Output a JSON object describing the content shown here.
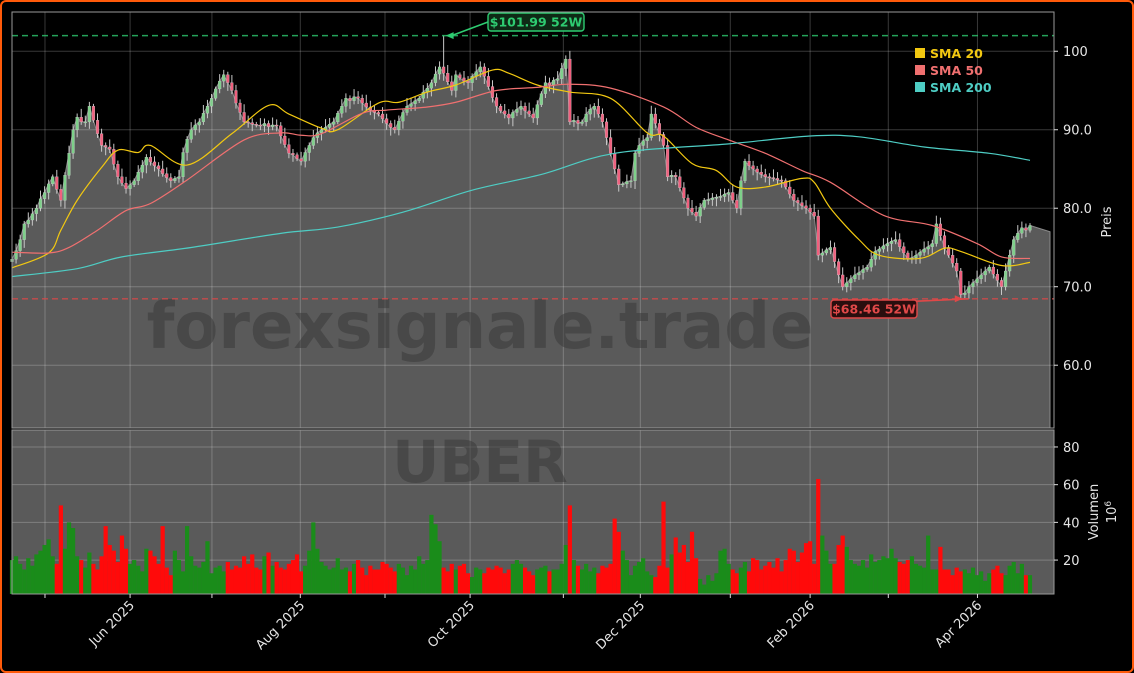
{
  "watermark": "forexsignale.trade",
  "ticker": "UBER",
  "colors": {
    "background": "#000000",
    "frame": "#ff5a0a",
    "area_fill": "#5a5a5a",
    "candle_up": "#7ed08a",
    "candle_down": "#f0607e",
    "volume_up": "#1a8c1a",
    "volume_down": "#ff0a0a",
    "sma20": "#f2c811",
    "sma50": "#f07070",
    "sma200": "#4ecdc4",
    "high_line": "#2ecc71",
    "low_line": "#e04848"
  },
  "chart_data": [
    {
      "type": "candlestick",
      "panel": "price",
      "ylabel": "Preis",
      "ylim": [
        52,
        105
      ],
      "yticks": [
        "60.0",
        "70.0",
        "80.0",
        "90.0",
        "100"
      ],
      "ytick_values": [
        60,
        70,
        80,
        90,
        100
      ],
      "grid": true,
      "x_ticks": [
        {
          "index": 8.1,
          "label": ""
        },
        {
          "index": 29,
          "label": "Jun 2025"
        },
        {
          "index": 49.1,
          "label": ""
        },
        {
          "index": 70.8,
          "label": "Aug 2025"
        },
        {
          "index": 91.6,
          "label": ""
        },
        {
          "index": 112.5,
          "label": "Oct 2025"
        },
        {
          "index": 135.4,
          "label": ""
        },
        {
          "index": 154.3,
          "label": "Dec 2025"
        },
        {
          "index": 176.4,
          "label": ""
        },
        {
          "index": 196,
          "label": "Feb 2026"
        },
        {
          "index": 215.2,
          "label": ""
        },
        {
          "index": 237.1,
          "label": "Apr 2026"
        }
      ],
      "close": [
        73.5,
        74.6,
        76.0,
        78.0,
        78.5,
        79.3,
        80.0,
        81.2,
        82.0,
        83.1,
        84.0,
        82.4,
        81.0,
        84.2,
        87.0,
        90.0,
        91.6,
        91.0,
        91.0,
        93.0,
        91.2,
        89.5,
        88.0,
        87.8,
        87.5,
        85.6,
        84.0,
        83.2,
        82.5,
        83.0,
        83.5,
        84.6,
        85.5,
        86.5,
        85.9,
        85.4,
        85.0,
        84.4,
        83.9,
        83.5,
        83.8,
        84.0,
        87.1,
        88.8,
        90.0,
        90.6,
        91.0,
        92.1,
        93.0,
        94.0,
        95.2,
        96.2,
        97.0,
        96.0,
        95.0,
        93.4,
        92.2,
        91.0,
        90.9,
        90.7,
        90.6,
        90.5,
        90.8,
        90.4,
        90.6,
        90.5,
        89.2,
        88.1,
        87.0,
        86.8,
        86.3,
        86.0,
        87.1,
        88.0,
        89.0,
        89.6,
        90.0,
        90.3,
        90.7,
        91.0,
        92.1,
        93.0,
        94.0,
        93.7,
        94.2,
        94.0,
        93.4,
        92.9,
        92.5,
        92.2,
        92.0,
        91.4,
        90.8,
        90.3,
        90.0,
        91.1,
        92.2,
        93.0,
        93.3,
        93.7,
        94.0,
        94.8,
        95.3,
        96.0,
        97.1,
        98.0,
        97.2,
        96.1,
        95.0,
        97.0,
        96.6,
        96.2,
        96.0,
        96.8,
        97.4,
        98.0,
        96.8,
        95.5,
        94.1,
        93.0,
        92.4,
        92.0,
        91.5,
        92.2,
        92.6,
        93.0,
        92.4,
        92.0,
        91.5,
        93.2,
        94.6,
        96.0,
        95.7,
        96.3,
        96.5,
        97.8,
        99.0,
        91.0,
        91.2,
        90.8,
        91.0,
        92.0,
        92.6,
        93.0,
        92.0,
        91.0,
        89.0,
        87.0,
        85.0,
        83.0,
        83.1,
        83.4,
        83.5,
        87.0,
        88.0,
        88.6,
        89.0,
        92.0,
        90.8,
        89.4,
        88.0,
        84.0,
        84.2,
        84.0,
        82.6,
        81.3,
        80.0,
        79.5,
        79.0,
        80.1,
        81.0,
        81.1,
        81.3,
        81.4,
        81.5,
        81.8,
        82.0,
        81.0,
        80.0,
        83.5,
        86.0,
        85.4,
        85.0,
        84.6,
        84.3,
        84.0,
        83.9,
        83.8,
        83.6,
        83.5,
        82.7,
        81.8,
        81.0,
        80.7,
        80.3,
        80.0,
        79.5,
        79.0,
        74.0,
        74.3,
        74.7,
        75.0,
        73.2,
        71.5,
        70.0,
        70.5,
        71.0,
        71.5,
        71.8,
        72.2,
        72.5,
        73.5,
        74.5,
        74.8,
        75.2,
        75.5,
        75.8,
        76.0,
        75.1,
        74.3,
        73.5,
        73.7,
        74.0,
        74.4,
        74.8,
        75.1,
        75.5,
        78.0,
        76.5,
        75.0,
        74.0,
        73.0,
        72.0,
        69.0,
        69.2,
        70.0,
        70.5,
        71.0,
        71.5,
        72.0,
        72.5,
        71.6,
        70.8,
        70.0,
        72.0,
        74.0,
        76.0,
        76.8,
        77.5,
        77.2,
        77.8
      ],
      "series": [
        {
          "name": "SMA 20",
          "points": [
            [
              0,
              72.4
            ],
            [
              9,
              74.3
            ],
            [
              12,
              77.2
            ],
            [
              16,
              81
            ],
            [
              22,
              85.2
            ],
            [
              26,
              87.4
            ],
            [
              31,
              87.1
            ],
            [
              34,
              88
            ],
            [
              43,
              85.5
            ],
            [
              54,
              89.5
            ],
            [
              63,
              93.1
            ],
            [
              68,
              92
            ],
            [
              76,
              90.2
            ],
            [
              80,
              90
            ],
            [
              90,
              93.4
            ],
            [
              95,
              93.5
            ],
            [
              102,
              94.8
            ],
            [
              109,
              95.7
            ],
            [
              118,
              97.6
            ],
            [
              122,
              97.2
            ],
            [
              129,
              95.7
            ],
            [
              137,
              94.8
            ],
            [
              147,
              94
            ],
            [
              156,
              89.6
            ],
            [
              160,
              89.2
            ],
            [
              167,
              85.7
            ],
            [
              173,
              84.8
            ],
            [
              178,
              82.7
            ],
            [
              185,
              82.7
            ],
            [
              194,
              83.8
            ],
            [
              197,
              83.3
            ],
            [
              201,
              80
            ],
            [
              208,
              76
            ],
            [
              213,
              74
            ],
            [
              223,
              73.6
            ],
            [
              229,
              74.9
            ],
            [
              233,
              74.5
            ],
            [
              243,
              72.7
            ],
            [
              250,
              73.1
            ]
          ]
        },
        {
          "name": "SMA 50",
          "points": [
            [
              0,
              74.4
            ],
            [
              9,
              74.3
            ],
            [
              14,
              75
            ],
            [
              21,
              77.2
            ],
            [
              28,
              79.7
            ],
            [
              34,
              80.6
            ],
            [
              43,
              83.6
            ],
            [
              57,
              88.7
            ],
            [
              66,
              89.6
            ],
            [
              71,
              89.3
            ],
            [
              76,
              89.5
            ],
            [
              86,
              92.1
            ],
            [
              92,
              92.5
            ],
            [
              102,
              92.9
            ],
            [
              109,
              93.5
            ],
            [
              119,
              95
            ],
            [
              129,
              95.4
            ],
            [
              137,
              95.8
            ],
            [
              147,
              95.3
            ],
            [
              160,
              92.9
            ],
            [
              168,
              90.3
            ],
            [
              176,
              88.7
            ],
            [
              185,
              87
            ],
            [
              194,
              84.8
            ],
            [
              201,
              83.3
            ],
            [
              214,
              79.1
            ],
            [
              226,
              77.8
            ],
            [
              237,
              75.5
            ],
            [
              243,
              73.8
            ],
            [
              250,
              73.6
            ]
          ]
        },
        {
          "name": "SMA 200",
          "points": [
            [
              0,
              71.3
            ],
            [
              16,
              72.3
            ],
            [
              27,
              73.8
            ],
            [
              44,
              75
            ],
            [
              66,
              76.8
            ],
            [
              80,
              77.6
            ],
            [
              96,
              79.5
            ],
            [
              113,
              82.3
            ],
            [
              130,
              84.3
            ],
            [
              148,
              87
            ],
            [
              176,
              88.2
            ],
            [
              196,
              89.2
            ],
            [
              208,
              89.1
            ],
            [
              224,
              87.8
            ],
            [
              240,
              87
            ],
            [
              250,
              86.1
            ]
          ]
        }
      ],
      "annotations": [
        {
          "label": "$101.99 52W",
          "value": 101.99,
          "index": 106,
          "kind": "high"
        },
        {
          "label": "$68.46 52W",
          "value": 68.46,
          "index": 233,
          "kind": "low"
        }
      ],
      "legend": {
        "placement": "top-right",
        "entries": [
          "SMA 20",
          "SMA 50",
          "SMA 200"
        ]
      }
    },
    {
      "type": "bar",
      "panel": "volume",
      "ylabel": "Volumen",
      "yunit": "10",
      "yunit_exp": "6",
      "ylim": [
        2,
        89
      ],
      "yticks": [
        "20",
        "40",
        "60",
        "80"
      ],
      "ytick_values": [
        20,
        40,
        60,
        80
      ],
      "grid": true,
      "values": [
        20,
        22,
        18,
        15,
        21,
        17,
        23,
        25,
        28,
        31,
        22,
        18,
        49,
        26,
        40,
        37,
        22,
        20,
        16,
        24,
        18,
        15,
        22,
        38,
        28,
        25,
        19,
        33,
        26,
        18,
        20,
        17,
        14,
        26,
        25,
        22,
        18,
        38,
        16,
        12,
        25,
        20,
        14,
        38,
        22,
        17,
        16,
        19,
        30,
        13,
        16,
        17,
        14,
        19,
        15,
        17,
        16,
        22,
        18,
        23,
        16,
        15,
        22,
        24,
        17,
        19,
        16,
        15,
        18,
        20,
        23,
        14,
        17,
        25,
        40,
        26,
        19,
        17,
        15,
        16,
        21,
        15,
        16,
        14,
        18,
        20,
        16,
        12,
        17,
        15,
        15,
        19,
        18,
        16,
        14,
        18,
        16,
        12,
        17,
        15,
        22,
        18,
        20,
        44,
        39,
        30,
        16,
        14,
        18,
        15,
        17,
        18,
        13,
        11,
        16,
        15,
        13,
        16,
        15,
        17,
        16,
        13,
        15,
        18,
        20,
        18,
        16,
        14,
        12,
        15,
        16,
        17,
        14,
        15,
        15,
        18,
        28,
        49,
        20,
        17,
        15,
        18,
        14,
        16,
        13,
        17,
        16,
        18,
        42,
        35,
        25,
        20,
        12,
        17,
        19,
        21,
        14,
        12,
        11,
        17,
        51,
        16,
        23,
        32,
        24,
        28,
        19,
        35,
        21,
        10,
        7,
        12,
        9,
        13,
        25,
        26,
        18,
        15,
        13,
        16,
        19,
        14,
        21,
        20,
        15,
        17,
        19,
        16,
        21,
        14,
        20,
        26,
        25,
        19,
        24,
        29,
        30,
        18,
        63,
        33,
        25,
        18,
        18,
        28,
        33,
        27,
        20,
        18,
        17,
        20,
        16,
        23,
        19,
        20,
        22,
        21,
        26,
        21,
        19,
        18,
        20,
        22,
        18,
        17,
        16,
        33,
        15,
        15,
        27,
        15,
        15,
        12,
        16,
        14,
        15,
        13,
        16,
        12,
        14,
        9,
        13,
        15,
        17,
        13,
        12,
        17,
        19,
        13,
        18,
        12,
        12
      ]
    }
  ]
}
